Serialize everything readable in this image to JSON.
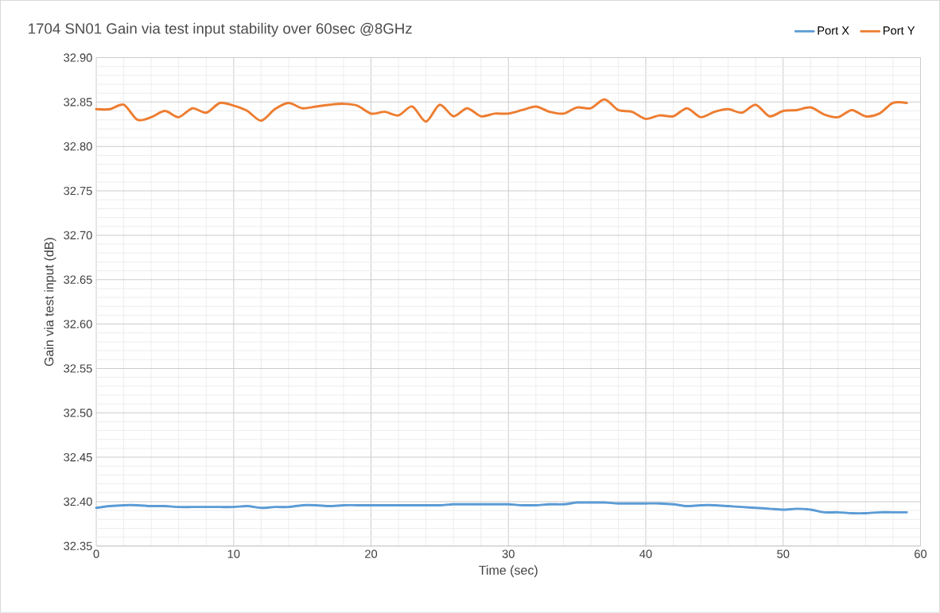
{
  "chart_data": {
    "type": "line",
    "title": "1704 SN01 Gain via test input stability over 60sec @8GHz",
    "xlabel": "Time (sec)",
    "ylabel": "Gain via test input (dB)",
    "x": [
      0,
      1,
      2,
      3,
      4,
      5,
      6,
      7,
      8,
      9,
      10,
      11,
      12,
      13,
      14,
      15,
      16,
      17,
      18,
      19,
      20,
      21,
      22,
      23,
      24,
      25,
      26,
      27,
      28,
      29,
      30,
      31,
      32,
      33,
      34,
      35,
      36,
      37,
      38,
      39,
      40,
      41,
      42,
      43,
      44,
      45,
      46,
      47,
      48,
      49,
      50,
      51,
      52,
      53,
      54,
      55,
      56,
      57,
      58,
      59
    ],
    "series": [
      {
        "name": "Port X",
        "color": "#5b9bd5",
        "values": [
          32.393,
          32.395,
          32.396,
          32.396,
          32.395,
          32.395,
          32.394,
          32.394,
          32.394,
          32.394,
          32.394,
          32.395,
          32.393,
          32.394,
          32.394,
          32.396,
          32.396,
          32.395,
          32.396,
          32.396,
          32.396,
          32.396,
          32.396,
          32.396,
          32.396,
          32.396,
          32.397,
          32.397,
          32.397,
          32.397,
          32.397,
          32.396,
          32.396,
          32.397,
          32.397,
          32.399,
          32.399,
          32.399,
          32.398,
          32.398,
          32.398,
          32.398,
          32.397,
          32.395,
          32.396,
          32.396,
          32.395,
          32.394,
          32.393,
          32.392,
          32.391,
          32.392,
          32.391,
          32.388,
          32.388,
          32.387,
          32.387,
          32.388,
          32.388,
          32.388
        ]
      },
      {
        "name": "Port Y",
        "color": "#ed7d31",
        "values": [
          32.842,
          32.842,
          32.847,
          32.83,
          32.833,
          32.84,
          32.833,
          32.843,
          32.838,
          32.849,
          32.846,
          32.84,
          32.829,
          32.842,
          32.849,
          32.843,
          32.845,
          32.847,
          32.848,
          32.846,
          32.837,
          32.839,
          32.835,
          32.845,
          32.828,
          32.847,
          32.834,
          32.843,
          32.834,
          32.837,
          32.837,
          32.841,
          32.845,
          32.839,
          32.837,
          32.844,
          32.843,
          32.853,
          32.841,
          32.839,
          32.831,
          32.835,
          32.834,
          32.843,
          32.833,
          32.839,
          32.842,
          32.838,
          32.847,
          32.834,
          32.84,
          32.841,
          32.844,
          32.836,
          32.833,
          32.841,
          32.834,
          32.837,
          32.849,
          32.849
        ]
      }
    ],
    "xlim": [
      0,
      60
    ],
    "xticks": [
      0,
      10,
      20,
      30,
      40,
      50,
      60
    ],
    "ylim": [
      32.35,
      32.9
    ],
    "yticks": [
      {
        "value": 32.35,
        "label": "32.35"
      },
      {
        "value": 32.4,
        "label": "32.40"
      },
      {
        "value": 32.45,
        "label": "32.45"
      },
      {
        "value": 32.5,
        "label": "32.50"
      },
      {
        "value": 32.55,
        "label": "32.55"
      },
      {
        "value": 32.6,
        "label": "32.60"
      },
      {
        "value": 32.65,
        "label": "32.65"
      },
      {
        "value": 32.7,
        "label": "32.70"
      },
      {
        "value": 32.75,
        "label": "32.75"
      },
      {
        "value": 32.8,
        "label": "32.80"
      },
      {
        "value": 32.85,
        "label": "32.85"
      },
      {
        "value": 32.9,
        "label": "32.90"
      }
    ],
    "grid": true,
    "legend": "top right",
    "marker": "none",
    "line_style": "solid"
  }
}
